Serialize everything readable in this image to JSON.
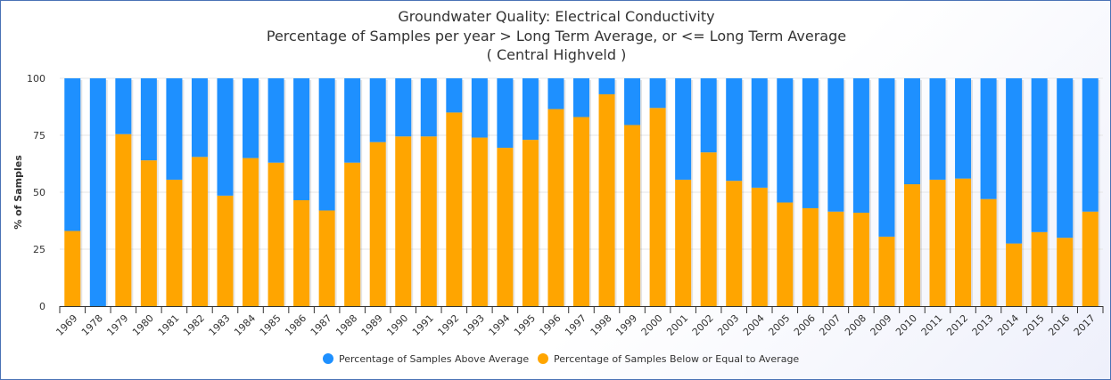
{
  "chart_data": {
    "type": "bar",
    "stacked": true,
    "percent": true,
    "title": "Groundwater Quality: Electrical Conductivity",
    "subtitle": "Percentage of Samples per year > Long Term Average, or <= Long Term Average",
    "subtitle2": "( Central Highveld )",
    "ylabel": "% of Samples",
    "xlabel": "",
    "ylim": [
      0,
      100
    ],
    "yticks": [
      0,
      25,
      50,
      75,
      100
    ],
    "grid": true,
    "legend_position": "bottom-center",
    "categories": [
      "1969",
      "1978",
      "1979",
      "1980",
      "1981",
      "1982",
      "1983",
      "1984",
      "1985",
      "1986",
      "1987",
      "1988",
      "1989",
      "1990",
      "1991",
      "1992",
      "1993",
      "1994",
      "1995",
      "1996",
      "1997",
      "1998",
      "1999",
      "2000",
      "2001",
      "2002",
      "2003",
      "2004",
      "2005",
      "2006",
      "2007",
      "2008",
      "2009",
      "2010",
      "2011",
      "2012",
      "2013",
      "2014",
      "2015",
      "2016",
      "2017"
    ],
    "series": [
      {
        "name": "Percentage of Samples Above Average",
        "color": "#1e90ff",
        "values": [
          67,
          100,
          24.5,
          36,
          44.5,
          34.5,
          51.5,
          35,
          37,
          53.5,
          58,
          37,
          28,
          25.5,
          25.5,
          15,
          26,
          30.5,
          27,
          13.5,
          17,
          7,
          20.5,
          13,
          44.5,
          32.5,
          45,
          48,
          54.5,
          57,
          58.5,
          59,
          69.5,
          46.5,
          44.5,
          44,
          53,
          72.5,
          67.5,
          70,
          58.5
        ]
      },
      {
        "name": "Percentage of Samples Below or Equal to Average",
        "color": "#ffa500",
        "values": [
          33,
          0,
          75.5,
          64,
          55.5,
          65.5,
          48.5,
          65,
          63,
          46.5,
          42,
          63,
          72,
          74.5,
          74.5,
          85,
          74,
          69.5,
          73,
          86.5,
          83,
          93,
          79.5,
          87,
          55.5,
          67.5,
          55,
          52,
          45.5,
          43,
          41.5,
          41,
          30.5,
          53.5,
          55.5,
          56,
          47,
          27.5,
          32.5,
          30,
          41.5
        ]
      }
    ]
  }
}
